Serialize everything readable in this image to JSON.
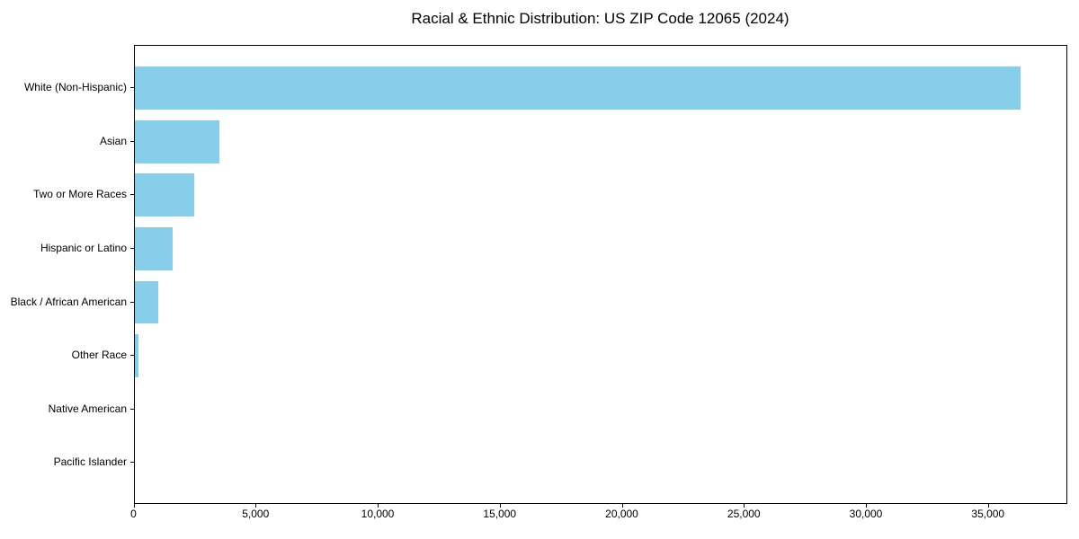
{
  "chart_data": {
    "type": "bar",
    "orientation": "horizontal",
    "title": "Racial & Ethnic Distribution: US ZIP Code 12065 (2024)",
    "categories": [
      "White (Non-Hispanic)",
      "Asian",
      "Two or More Races",
      "Hispanic or Latino",
      "Black / African American",
      "Other Race",
      "Native American",
      "Pacific Islander"
    ],
    "values": [
      36350,
      3470,
      2460,
      1570,
      990,
      170,
      0,
      0
    ],
    "xlabel": "",
    "ylabel": "",
    "xlim": [
      0,
      38250
    ],
    "xticks": [
      0,
      5000,
      10000,
      15000,
      20000,
      25000,
      30000,
      35000
    ],
    "xtick_labels": [
      "0",
      "5,000",
      "10,000",
      "15,000",
      "20,000",
      "25,000",
      "30,000",
      "35,000"
    ],
    "bar_color": "#87ceeb",
    "axis_color": "#000000",
    "text_color": "#000000",
    "background": "#ffffff",
    "grid": false,
    "legend": "none"
  }
}
